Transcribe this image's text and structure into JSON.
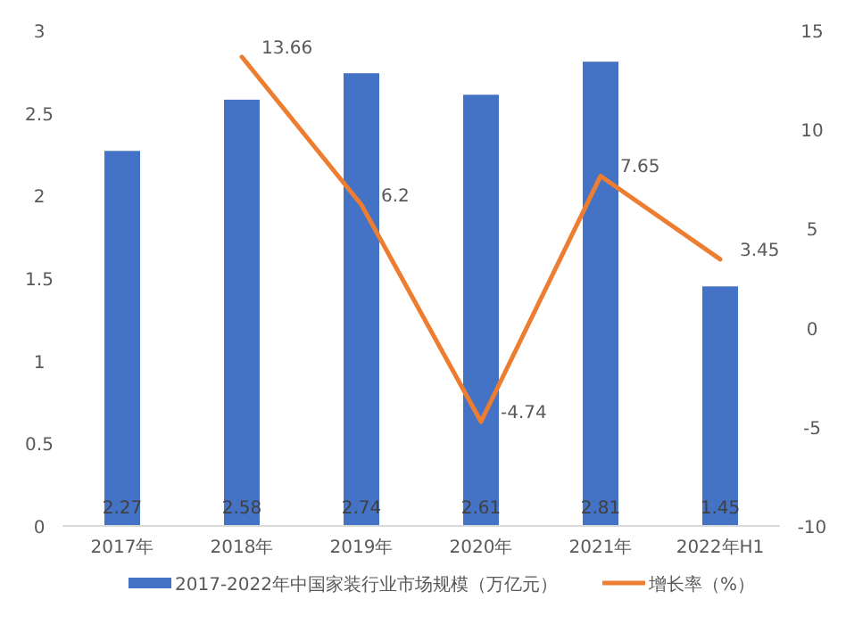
{
  "chart_data": {
    "type": "bar",
    "categories": [
      "2017年",
      "2018年",
      "2019年",
      "2020年",
      "2021年",
      "2022年H1"
    ],
    "series": [
      {
        "name": "2017-2022年中国家装行业市场规模（万亿元）",
        "color": "#4472c4",
        "values": [
          2.27,
          2.58,
          2.74,
          2.61,
          2.81,
          1.45
        ]
      },
      {
        "name": "增长率（%）",
        "type": "line",
        "axis": "y2",
        "color": "#ed7d31",
        "values": [
          null,
          13.66,
          6.2,
          -4.74,
          7.65,
          3.45
        ]
      }
    ],
    "ylim": [
      0,
      3
    ],
    "yticks": [
      0,
      0.5,
      1,
      1.5,
      2,
      2.5,
      3
    ],
    "y2lim": [
      -10,
      15
    ],
    "y2ticks": [
      -10,
      -5,
      0,
      5,
      10,
      15
    ],
    "data_labels": true,
    "legend": "bottom",
    "grid": false
  }
}
